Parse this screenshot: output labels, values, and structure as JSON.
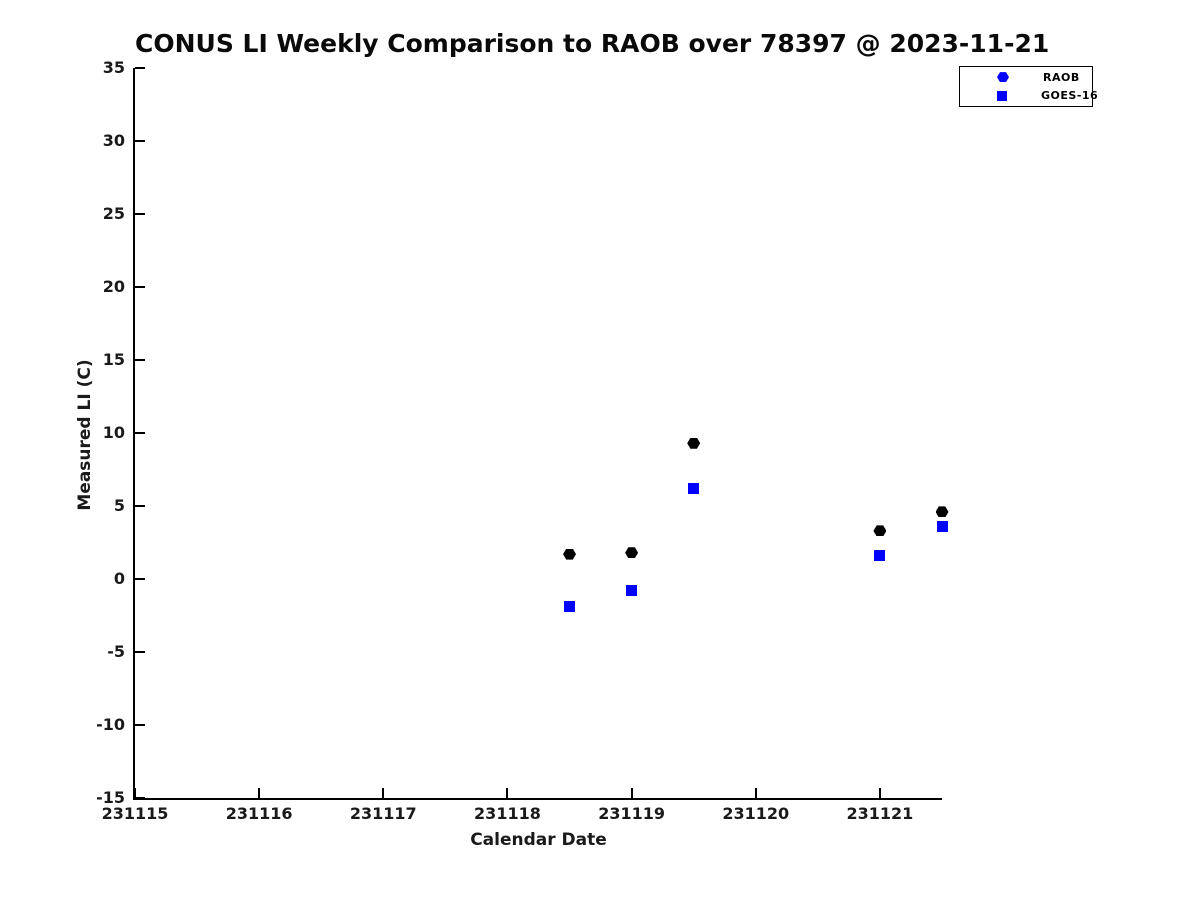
{
  "chart_data": {
    "type": "scatter",
    "title": "CONUS LI Weekly Comparison to RAOB over 78397 @ 2023-11-21",
    "xlabel": "Calendar Date",
    "ylabel": "Measured LI (C)",
    "xlim": [
      231115,
      231121.5
    ],
    "ylim": [
      -15,
      35
    ],
    "xticks": [
      231115,
      231116,
      231117,
      231118,
      231119,
      231120,
      231121
    ],
    "yticks": [
      -15,
      -10,
      -5,
      0,
      5,
      10,
      15,
      20,
      25,
      30,
      35
    ],
    "grid": false,
    "background_color": "#ffffff",
    "spine_color": "#000000",
    "legend_position": "upper-right",
    "series": [
      {
        "name": "RAOB",
        "marker": "hexagon",
        "point_color": "#000000",
        "legend_color": "#0000ff",
        "points": [
          {
            "x": 231118.5,
            "y": 1.7
          },
          {
            "x": 231119.0,
            "y": 1.8
          },
          {
            "x": 231119.5,
            "y": 9.3
          },
          {
            "x": 231121.0,
            "y": 3.3
          },
          {
            "x": 231121.5,
            "y": 4.6
          }
        ]
      },
      {
        "name": "GOES-16",
        "marker": "square",
        "point_color": "#0000ff",
        "legend_color": "#0000ff",
        "points": [
          {
            "x": 231118.5,
            "y": -1.9
          },
          {
            "x": 231119.0,
            "y": -0.8
          },
          {
            "x": 231119.5,
            "y": 6.2
          },
          {
            "x": 231121.0,
            "y": 1.6
          },
          {
            "x": 231121.5,
            "y": 3.6
          }
        ]
      }
    ]
  }
}
